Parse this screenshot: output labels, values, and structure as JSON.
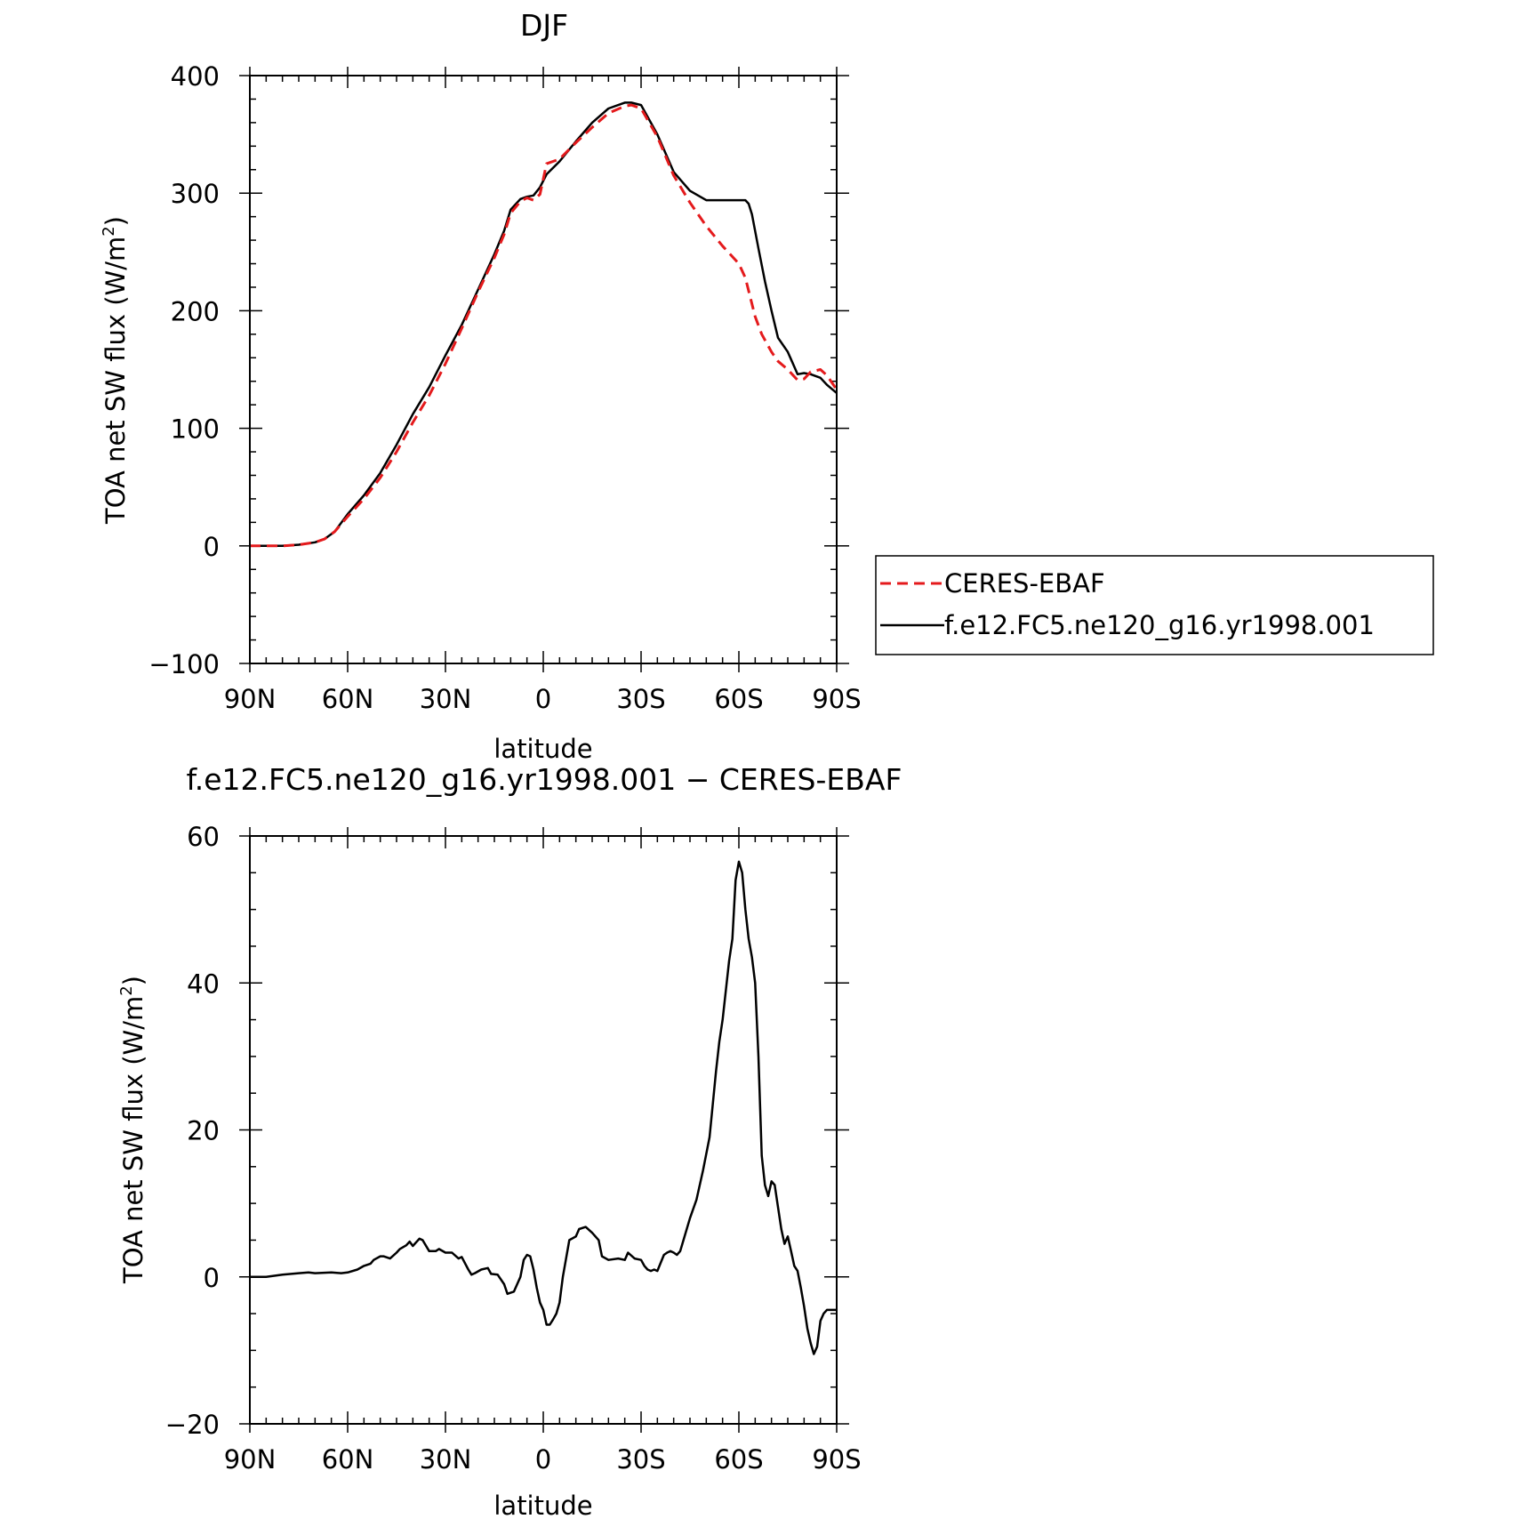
{
  "chart_data": [
    {
      "type": "line",
      "title": "DJF",
      "xlabel": "latitude",
      "ylabel": "TOA net SW flux (W/m²)",
      "ylabel_main": "TOA net SW flux (W/m",
      "ylabel_sup": "2",
      "ylabel_close": ")",
      "xlim": [
        90,
        -90
      ],
      "ylim": [
        -100,
        400
      ],
      "x_ticks": [
        {
          "value": 90,
          "label": "90N"
        },
        {
          "value": 60,
          "label": "60N"
        },
        {
          "value": 30,
          "label": "30N"
        },
        {
          "value": 0,
          "label": "0"
        },
        {
          "value": -30,
          "label": "30S"
        },
        {
          "value": -60,
          "label": "60S"
        },
        {
          "value": -90,
          "label": "90S"
        }
      ],
      "y_ticks": [
        {
          "value": 400,
          "label": "400"
        },
        {
          "value": 300,
          "label": "300"
        },
        {
          "value": 200,
          "label": "200"
        },
        {
          "value": 100,
          "label": "100"
        },
        {
          "value": 0,
          "label": "0"
        },
        {
          "value": -100,
          "label": "−100"
        }
      ],
      "legend_position": "right",
      "series": [
        {
          "name": "CERES-EBAF",
          "color": "#e41a1c",
          "dash": "dashed",
          "x": [
            90,
            80,
            75,
            70,
            67,
            64,
            60,
            55,
            50,
            45,
            40,
            35,
            30,
            25,
            20,
            15,
            12,
            10,
            7,
            5,
            3,
            1,
            -1,
            -5,
            -10,
            -15,
            -20,
            -25,
            -27,
            -30,
            -35,
            -40,
            -45,
            -50,
            -55,
            -60,
            -62,
            -65,
            -67,
            -70,
            -72,
            -75,
            -78,
            -80,
            -82,
            -85,
            -87,
            -90
          ],
          "y": [
            0,
            0,
            1,
            3,
            6,
            12,
            25,
            40,
            58,
            80,
            105,
            128,
            155,
            185,
            216,
            245,
            265,
            283,
            293,
            296,
            294,
            299,
            325,
            329,
            343,
            356,
            368,
            374,
            375,
            372,
            348,
            315,
            292,
            272,
            255,
            240,
            228,
            195,
            180,
            165,
            157,
            150,
            141,
            142,
            148,
            150,
            145,
            133
          ]
        },
        {
          "name": "f.e12.FC5.ne120_g16.yr1998.001",
          "color": "#000000",
          "dash": "solid",
          "x": [
            90,
            80,
            75,
            70,
            67,
            64,
            60,
            55,
            50,
            45,
            40,
            35,
            30,
            25,
            20,
            15,
            12,
            10,
            7,
            5,
            3,
            1,
            -1,
            -5,
            -10,
            -15,
            -20,
            -25,
            -27,
            -30,
            -35,
            -40,
            -45,
            -50,
            -55,
            -60,
            -62,
            -63,
            -64,
            -66,
            -68,
            -70,
            -72,
            -75,
            -78,
            -80,
            -82,
            -85,
            -87,
            -90
          ],
          "y": [
            0,
            0,
            1,
            3,
            6,
            12,
            27,
            43,
            62,
            86,
            112,
            135,
            162,
            188,
            218,
            248,
            268,
            286,
            295,
            297,
            298,
            305,
            316,
            327,
            344,
            360,
            372,
            377,
            377,
            375,
            350,
            318,
            302,
            294,
            294,
            294,
            294,
            291,
            282,
            253,
            225,
            200,
            177,
            165,
            146,
            147,
            146,
            143,
            137,
            130
          ]
        }
      ]
    },
    {
      "type": "line",
      "title": "f.e12.FC5.ne120_g16.yr1998.001 − CERES-EBAF",
      "xlabel": "latitude",
      "ylabel": "TOA net SW flux (W/m²)",
      "ylabel_main": "TOA net SW flux (W/m",
      "ylabel_sup": "2",
      "ylabel_close": ")",
      "xlim": [
        90,
        -90
      ],
      "ylim": [
        -20,
        60
      ],
      "x_ticks": [
        {
          "value": 90,
          "label": "90N"
        },
        {
          "value": 60,
          "label": "60N"
        },
        {
          "value": 30,
          "label": "30N"
        },
        {
          "value": 0,
          "label": "0"
        },
        {
          "value": -30,
          "label": "30S"
        },
        {
          "value": -60,
          "label": "60S"
        },
        {
          "value": -90,
          "label": "90S"
        }
      ],
      "y_ticks": [
        {
          "value": 60,
          "label": "60"
        },
        {
          "value": 40,
          "label": "40"
        },
        {
          "value": 20,
          "label": "20"
        },
        {
          "value": 0,
          "label": "0"
        },
        {
          "value": -20,
          "label": "−20"
        }
      ],
      "series": [
        {
          "name": "",
          "color": "#000000",
          "dash": "solid",
          "x": [
            90,
            85,
            80,
            75,
            72,
            70,
            65,
            62,
            60,
            57,
            55,
            53,
            52,
            50,
            49,
            47,
            45,
            44,
            42,
            41,
            40,
            38,
            37,
            35,
            33,
            32,
            30,
            28,
            26,
            25,
            23,
            22,
            21,
            19,
            17,
            16,
            14,
            12,
            11,
            9,
            7,
            6,
            5,
            4,
            3,
            2,
            1,
            0,
            -1,
            -2,
            -3,
            -4,
            -5,
            -6,
            -8,
            -10,
            -11,
            -13,
            -15,
            -17,
            -18,
            -20,
            -23,
            -25,
            -26,
            -28,
            -30,
            -31,
            -32,
            -33,
            -34,
            -35,
            -37,
            -38,
            -39,
            -40,
            -41,
            -42,
            -43,
            -45,
            -47,
            -49,
            -51,
            -53,
            -54,
            -55,
            -57,
            -58,
            -59,
            -60,
            -61,
            -62,
            -63,
            -64,
            -65,
            -66,
            -67,
            -68,
            -69,
            -70,
            -71,
            -72,
            -73,
            -74,
            -75,
            -76,
            -77,
            -78,
            -79,
            -80,
            -81,
            -82,
            -83,
            -84,
            -85,
            -86,
            -87,
            -88,
            -89,
            -90
          ],
          "y": [
            0,
            0,
            0.3,
            0.5,
            0.6,
            0.5,
            0.6,
            0.5,
            0.6,
            1.0,
            1.5,
            1.8,
            2.3,
            2.8,
            2.8,
            2.5,
            3.3,
            3.8,
            4.3,
            4.8,
            4.2,
            5.2,
            5.0,
            3.5,
            3.5,
            3.8,
            3.3,
            3.3,
            2.5,
            2.7,
            1.0,
            0.3,
            0.5,
            1.0,
            1.2,
            0.4,
            0.3,
            -1.0,
            -2.3,
            -2.0,
            0,
            2.3,
            3.0,
            2.8,
            1.0,
            -1.5,
            -3.5,
            -4.5,
            -6.5,
            -6.5,
            -5.8,
            -5.0,
            -3.5,
            0,
            5.0,
            5.5,
            6.5,
            6.8,
            6.0,
            5.0,
            2.8,
            2.3,
            2.5,
            2.3,
            3.3,
            2.5,
            2.3,
            1.5,
            1.0,
            0.8,
            1.0,
            0.8,
            3.0,
            3.3,
            3.5,
            3.3,
            3.0,
            3.5,
            5.0,
            8.0,
            10.5,
            14.5,
            19.0,
            28.0,
            32.0,
            35.0,
            43.0,
            46.0,
            54.0,
            56.5,
            55.0,
            50.0,
            46.0,
            43.5,
            40.0,
            30.0,
            16.5,
            12.5,
            11.0,
            13.0,
            12.5,
            9.5,
            6.5,
            4.5,
            5.5,
            3.5,
            1.5,
            0.8,
            -1.5,
            -4.0,
            -7.0,
            -9.0,
            -10.5,
            -9.5,
            -6.0,
            -5.0,
            -4.5,
            -4.5,
            -4.5,
            -4.5
          ]
        }
      ]
    }
  ]
}
